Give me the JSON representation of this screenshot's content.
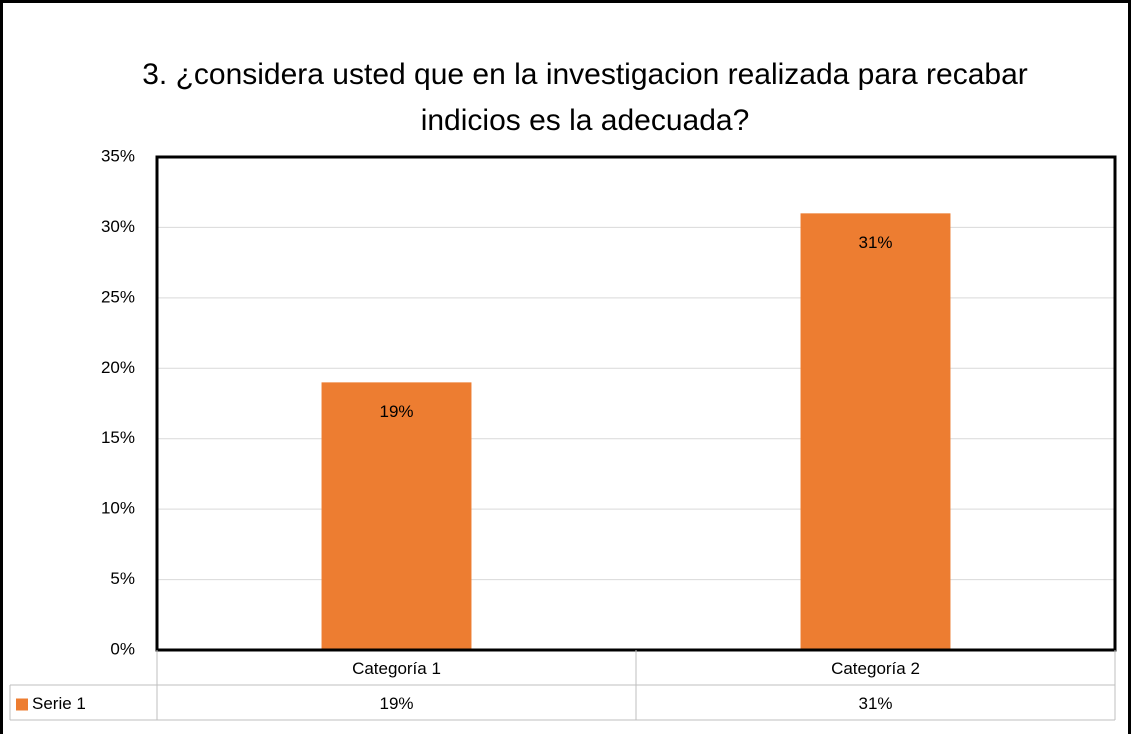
{
  "chart_data": {
    "type": "bar",
    "title": "3. ¿considera usted que en la investigacion realizada para recabar indicios es la adecuada?",
    "categories": [
      "Categoría 1",
      "Categoría 2"
    ],
    "series": [
      {
        "name": "Serie 1",
        "color": "#ed7d31",
        "values": [
          19,
          31
        ],
        "value_labels": [
          "19%",
          "31%"
        ]
      }
    ],
    "ylim": [
      0,
      35
    ],
    "yticks": [
      {
        "value": 0,
        "label": "0%"
      },
      {
        "value": 5,
        "label": "5%"
      },
      {
        "value": 10,
        "label": "10%"
      },
      {
        "value": 15,
        "label": "15%"
      },
      {
        "value": 20,
        "label": "20%"
      },
      {
        "value": 25,
        "label": "25%"
      },
      {
        "value": 30,
        "label": "30%"
      },
      {
        "value": 35,
        "label": "35%"
      }
    ],
    "grid": true,
    "data_table": true
  }
}
